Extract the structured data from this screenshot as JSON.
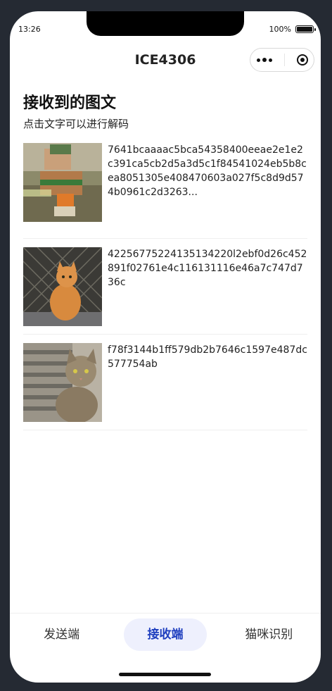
{
  "status": {
    "time": "13:26",
    "battery": "100%"
  },
  "nav": {
    "title": "ICE4306"
  },
  "page": {
    "heading": "接收到的图文",
    "subheading": "点击文字可以进行解码"
  },
  "items": [
    {
      "text": "7641bcaaaac5bca54358400eeae2e1e2c391ca5cb2d5a3d5c1f84541024eb5b8cea8051305e408470603a027f5c8d9d574b0961c2d3263..."
    },
    {
      "text": "42256775224135134220l2ebf0d26c452891f02761e4c116131116e46a7c747d736c"
    },
    {
      "text": "f78f3144b1ff579db2b7646c1597e487dc577754ab"
    }
  ],
  "tabs": [
    {
      "label": "发送端"
    },
    {
      "label": "接收端"
    },
    {
      "label": "猫咪识别"
    }
  ],
  "colors": {
    "accent": "#1f3fbf",
    "active_tab_bg": "#eef0fd"
  }
}
